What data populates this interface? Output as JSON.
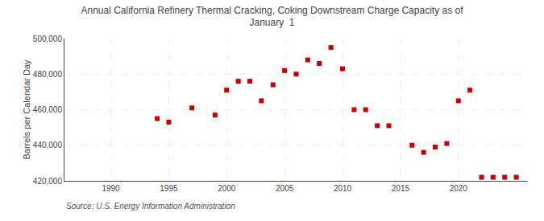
{
  "chart_data": {
    "type": "scatter",
    "title": "Annual California Refinery Thermal Cracking, Coking Downstream Charge Capacity as of\nJanuary  1",
    "ylabel": "Barrels per Calendar Day",
    "annotations": [
      "Source: U.S. Energy Information Administration"
    ],
    "color": "#cc0000",
    "marker": "square",
    "grid": true,
    "xlim": [
      1986,
      2026
    ],
    "ylim": [
      420000,
      500000
    ],
    "xticks": [
      1990,
      1995,
      2000,
      2005,
      2010,
      2015,
      2020
    ],
    "yticks": [
      {
        "value": 420000,
        "label": "420,000"
      },
      {
        "value": 440000,
        "label": "440,000"
      },
      {
        "value": 460000,
        "label": "460,000"
      },
      {
        "value": 480000,
        "label": "480,000"
      },
      {
        "value": 500000,
        "label": "500,000"
      }
    ],
    "x": [
      1994,
      1995,
      1997,
      1999,
      2000,
      2001,
      2002,
      2003,
      2004,
      2005,
      2006,
      2007,
      2008,
      2009,
      2010,
      2011,
      2012,
      2013,
      2014,
      2016,
      2017,
      2018,
      2019,
      2020,
      2021,
      2022,
      2023,
      2024,
      2025
    ],
    "values": [
      455000,
      453000,
      461000,
      457000,
      471000,
      476000,
      476000,
      465000,
      474000,
      482000,
      480000,
      488000,
      486000,
      495000,
      483000,
      460000,
      460000,
      451000,
      451000,
      440000,
      436000,
      439000,
      441000,
      465000,
      471000,
      422000,
      422000,
      422000,
      422000
    ]
  }
}
